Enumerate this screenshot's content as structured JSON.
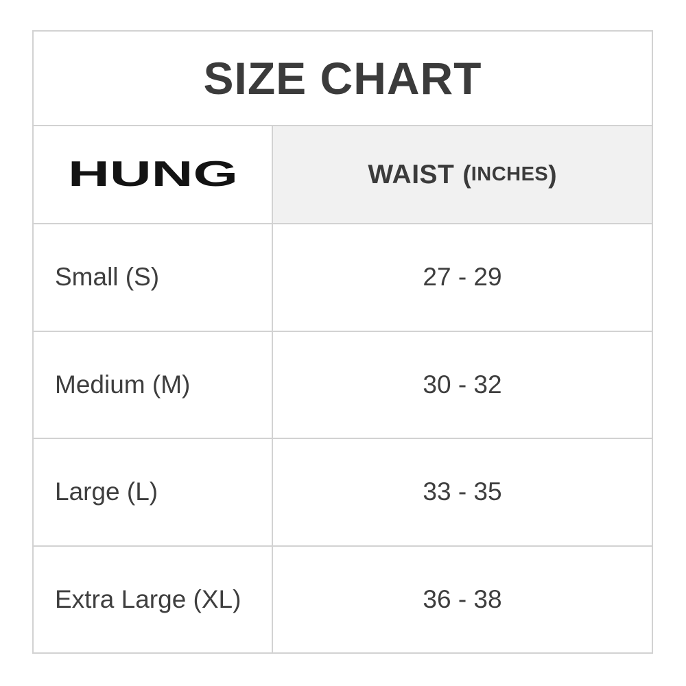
{
  "size_chart": {
    "title": "SIZE CHART",
    "brand": "HUNG",
    "waist_header": {
      "label": "WAIST",
      "paren_open": "(",
      "unit": "INCHES",
      "paren_close": ")"
    },
    "rows": [
      {
        "size": "Small (S)",
        "waist": "27 - 29"
      },
      {
        "size": "Medium (M)",
        "waist": "30 - 32"
      },
      {
        "size": "Large (L)",
        "waist": "33 - 35"
      },
      {
        "size": "Extra Large (XL)",
        "waist": "36 - 38"
      }
    ],
    "colors": {
      "border": "#d2d2d2",
      "header_bg": "#f1f1f1",
      "text": "#3e3e3e",
      "title_text": "#3b3b3b",
      "logo": "#131313"
    }
  }
}
